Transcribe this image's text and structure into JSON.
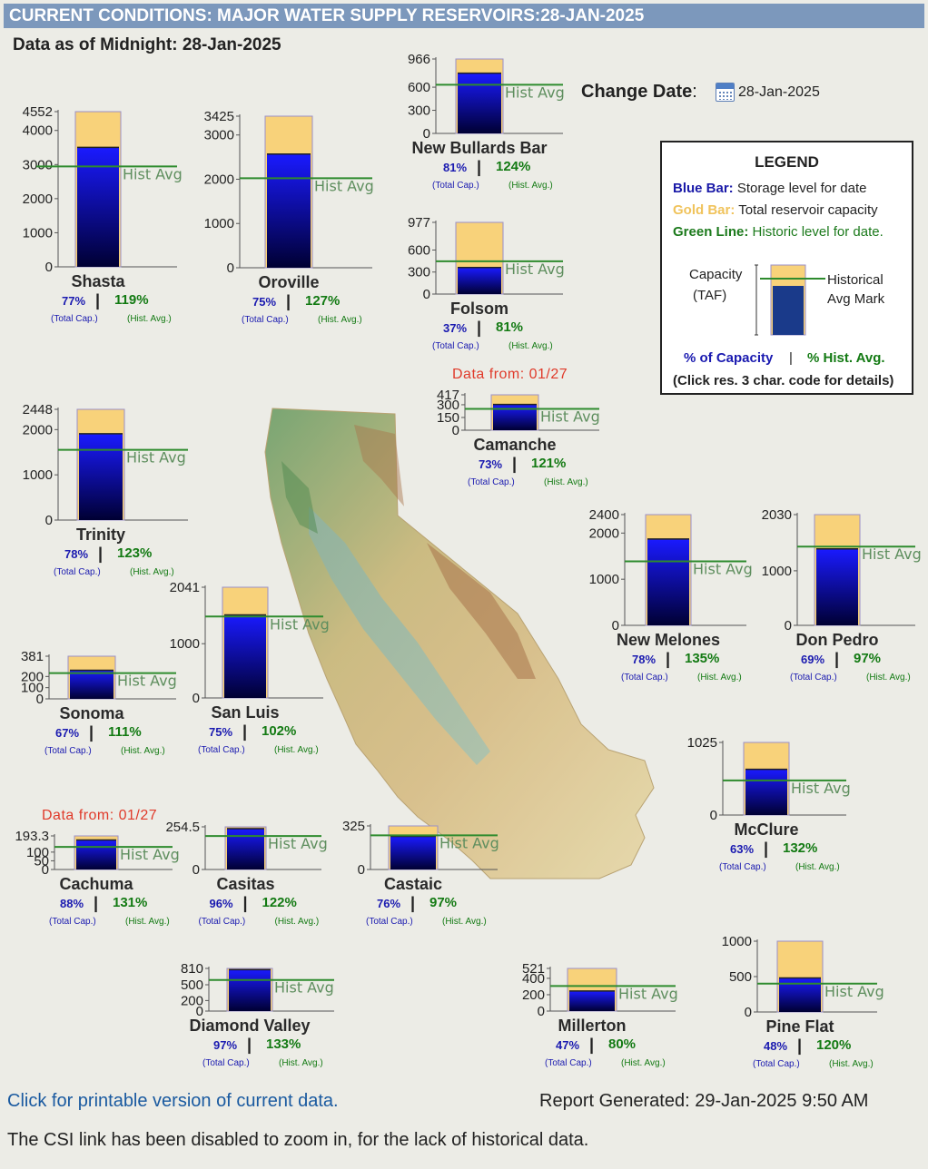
{
  "header": {
    "title": "CURRENT CONDITIONS: MAJOR WATER SUPPLY RESERVOIRS:28-JAN-2025",
    "as_of": "Data as of Midnight: 28-Jan-2025",
    "change_date_label": "Change Date",
    "change_date_value": "28-Jan-2025"
  },
  "legend": {
    "title": "LEGEND",
    "blue_key": "Blue Bar:",
    "blue_text": "Storage level for date",
    "gold_key": "Gold Bar:",
    "gold_text": "Total reservoir capacity",
    "green_key": "Green Line:",
    "green_text": "Historic level for date.",
    "capacity_label_1": "Capacity",
    "capacity_label_2": "(TAF)",
    "hist_label_1": "Historical",
    "hist_label_2": "Avg Mark",
    "pct_capacity": "% of Capacity",
    "pct_sep": "|",
    "pct_hist": "% Hist. Avg.",
    "click_note": "(Click res. 3 char. code for details)"
  },
  "labels": {
    "hist_avg": "Hist Avg",
    "total_cap": "(Total Cap.)",
    "hist_avg_sub": "(Hist. Avg.)",
    "sep": "|"
  },
  "colors": {
    "title_bar": "#7c98bc",
    "storage_top": "#1a1aff",
    "storage_bottom": "#000033",
    "capacity": "#f8d27a",
    "hist_line": "#2e8b2e",
    "data_from": "#e03a2a"
  },
  "chart_data": {
    "type": "bar",
    "units": "TAF",
    "reservoirs": [
      {
        "name": "Shasta",
        "capacity": 4552,
        "storage": 3505,
        "hist_avg": 2945,
        "ticks": [
          4552,
          4000,
          3000,
          2000,
          1000,
          0
        ],
        "pct_capacity": "77%",
        "pct_hist_avg": "119%"
      },
      {
        "name": "Oroville",
        "capacity": 3425,
        "storage": 2569,
        "hist_avg": 2023,
        "ticks": [
          3425,
          3000,
          2000,
          1000,
          0
        ],
        "pct_capacity": "75%",
        "pct_hist_avg": "127%"
      },
      {
        "name": "New Bullards Bar",
        "capacity": 966,
        "storage": 782,
        "hist_avg": 631,
        "ticks": [
          966,
          600,
          300,
          0
        ],
        "pct_capacity": "81%",
        "pct_hist_avg": "124%"
      },
      {
        "name": "Folsom",
        "capacity": 977,
        "storage": 361,
        "hist_avg": 446,
        "ticks": [
          977,
          600,
          300,
          0
        ],
        "pct_capacity": "37%",
        "pct_hist_avg": "81%"
      },
      {
        "name": "Camanche",
        "capacity": 417,
        "storage": 304,
        "hist_avg": 251,
        "ticks": [
          417,
          300,
          150,
          0
        ],
        "pct_capacity": "73%",
        "pct_hist_avg": "121%",
        "data_from": "Data from: 01/27"
      },
      {
        "name": "Trinity",
        "capacity": 2448,
        "storage": 1909,
        "hist_avg": 1552,
        "ticks": [
          2448,
          2000,
          1000,
          0
        ],
        "pct_capacity": "78%",
        "pct_hist_avg": "123%"
      },
      {
        "name": "New Melones",
        "capacity": 2400,
        "storage": 1872,
        "hist_avg": 1387,
        "ticks": [
          2400,
          2000,
          1000,
          0
        ],
        "pct_capacity": "78%",
        "pct_hist_avg": "135%"
      },
      {
        "name": "Don Pedro",
        "capacity": 2030,
        "storage": 1401,
        "hist_avg": 1444,
        "ticks": [
          2030,
          1000,
          0
        ],
        "pct_capacity": "69%",
        "pct_hist_avg": "97%"
      },
      {
        "name": "Sonoma",
        "capacity": 381,
        "storage": 255,
        "hist_avg": 230,
        "ticks": [
          381,
          200,
          100,
          0
        ],
        "pct_capacity": "67%",
        "pct_hist_avg": "111%"
      },
      {
        "name": "San Luis",
        "capacity": 2041,
        "storage": 1531,
        "hist_avg": 1501,
        "ticks": [
          2041,
          1000,
          0
        ],
        "pct_capacity": "75%",
        "pct_hist_avg": "102%"
      },
      {
        "name": "McClure",
        "capacity": 1025,
        "storage": 646,
        "hist_avg": 489,
        "ticks": [
          1025,
          0
        ],
        "pct_capacity": "63%",
        "pct_hist_avg": "132%"
      },
      {
        "name": "Cachuma",
        "capacity": 193.3,
        "storage": 170,
        "hist_avg": 130,
        "ticks": [
          193.3,
          100,
          50,
          0
        ],
        "pct_capacity": "88%",
        "pct_hist_avg": "131%",
        "data_from": "Data from: 01/27"
      },
      {
        "name": "Casitas",
        "capacity": 254.5,
        "storage": 244,
        "hist_avg": 200,
        "ticks": [
          254.5,
          0
        ],
        "pct_capacity": "96%",
        "pct_hist_avg": "122%"
      },
      {
        "name": "Castaic",
        "capacity": 325,
        "storage": 247,
        "hist_avg": 255,
        "ticks": [
          325,
          0
        ],
        "pct_capacity": "76%",
        "pct_hist_avg": "97%"
      },
      {
        "name": "Diamond Valley",
        "capacity": 810,
        "storage": 786,
        "hist_avg": 591,
        "ticks": [
          810,
          500,
          200,
          0
        ],
        "pct_capacity": "97%",
        "pct_hist_avg": "133%"
      },
      {
        "name": "Millerton",
        "capacity": 521,
        "storage": 245,
        "hist_avg": 306,
        "ticks": [
          521,
          400,
          200,
          0
        ],
        "pct_capacity": "47%",
        "pct_hist_avg": "80%"
      },
      {
        "name": "Pine Flat",
        "capacity": 1000,
        "storage": 480,
        "hist_avg": 400,
        "ticks": [
          1000,
          500,
          0
        ],
        "pct_capacity": "48%",
        "pct_hist_avg": "120%"
      }
    ]
  },
  "footer": {
    "printable_link": "Click for printable version of current data.",
    "report_generated": "Report Generated: 29-Jan-2025 9:50 AM",
    "note": "The CSI link has been disabled to zoom in, for the lack of historical data."
  }
}
